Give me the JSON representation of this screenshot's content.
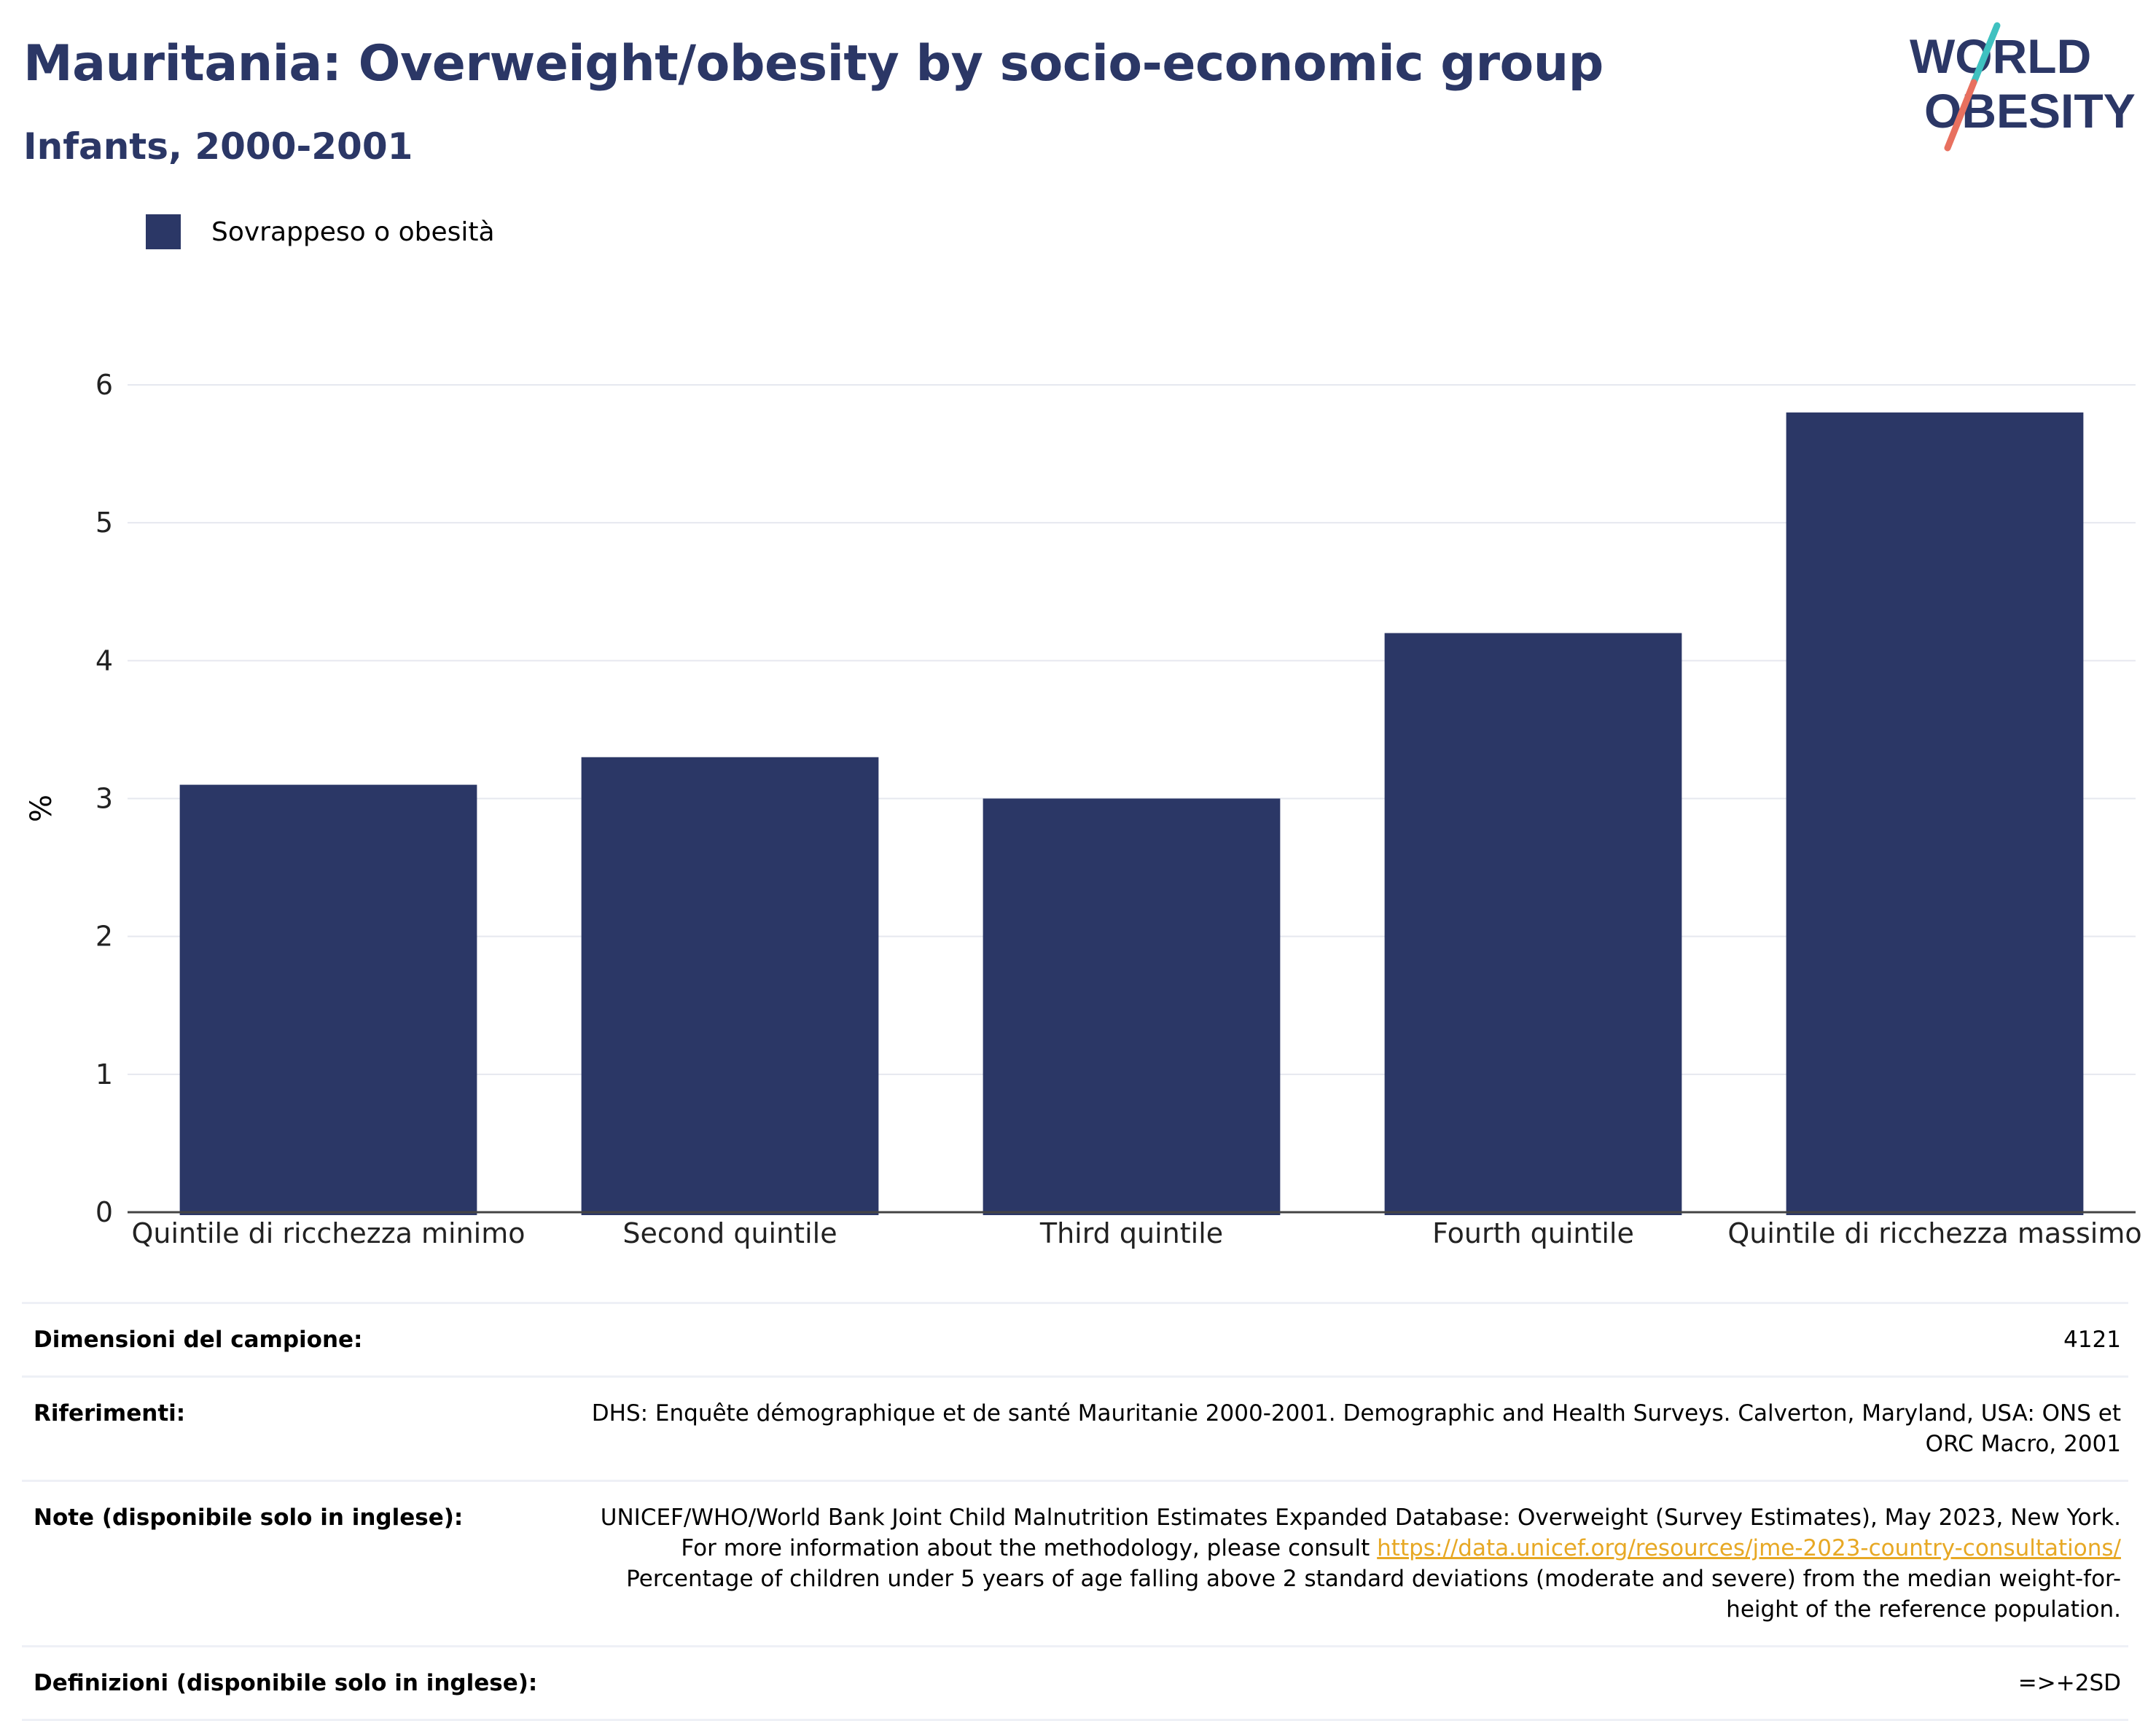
{
  "header": {
    "title": "Mauritania: Overweight/obesity by socio-economic group",
    "subtitle": "Infants, 2000-2001"
  },
  "logo": {
    "line1": "WORLD",
    "line2": "OBESITY"
  },
  "colors": {
    "bar": "#2b3766",
    "title": "#2b3766",
    "accent_teal": "#3fc1c0",
    "accent_red": "#e8705f",
    "link": "#e7a824"
  },
  "legend": {
    "label": "Sovrappeso o obesità"
  },
  "chart_data": {
    "type": "bar",
    "categories": [
      "Quintile di ricchezza minimo",
      "Second quintile",
      "Third quintile",
      "Fourth quintile",
      "Quintile di ricchezza massimo"
    ],
    "series": [
      {
        "name": "Sovrappeso o obesità",
        "values": [
          3.1,
          3.3,
          3.0,
          4.2,
          5.8
        ]
      }
    ],
    "ylabel": "%",
    "ylim": [
      0,
      6
    ],
    "yticks": [
      0,
      1,
      2,
      3,
      4,
      5,
      6
    ],
    "grid": true,
    "legend_position": "top-left"
  },
  "info": {
    "sample_label": "Dimensioni del campione:",
    "sample_value": "4121",
    "refs_label": "Riferimenti:",
    "refs_value": "DHS: Enquête démographique et de santé Mauritanie 2000-2001. Demographic and Health Surveys. Calverton, Maryland, USA: ONS et ORC Macro, 2001",
    "notes_label": "Note (disponibile solo in inglese):",
    "notes_text1": "UNICEF/WHO/World Bank Joint Child Malnutrition Estimates Expanded Database: Overweight (Survey Estimates), May 2023, New York. For more information about the methodology, please consult ",
    "notes_link": "https://data.unicef.org/resources/jme-2023-country-consultations/",
    "notes_text2": " Percentage of children under 5 years of age falling above 2 standard deviations (moderate and severe) from the median weight-for-height of the reference population.",
    "defs_label": "Definizioni (disponibile solo in inglese):",
    "defs_value": "=>+2SD"
  }
}
